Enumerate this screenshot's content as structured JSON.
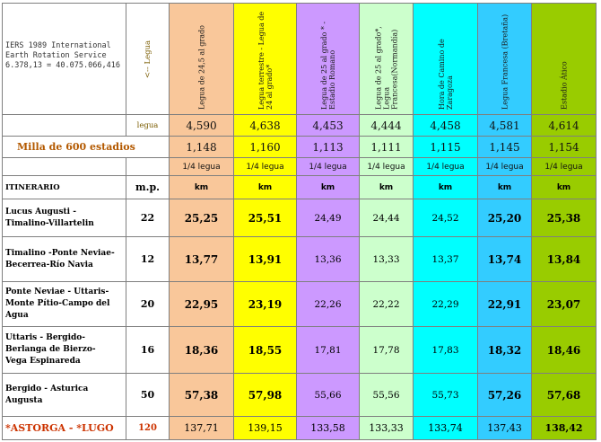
{
  "header": {
    "iers_line1": "IERS 1989 International",
    "iers_line2": "Earth Rotation Service",
    "iers_line3": "6.378,13 = 40.075.066,416",
    "legua_arrow": "<-- Legua",
    "columns": [
      "Legua de 24,5 al grado",
      "Legua terrestre - Legua de 24 al grado*",
      "Legua de 25 al grado * - Estadio Romano",
      "Legua de 25 al grado*, Legua Francesa(Normandía)",
      "Hora de Camino de Zaragoza",
      "Legua Francesa (Bretaña)",
      "Estadio Ático"
    ]
  },
  "legua_row": {
    "label": "legua",
    "values": [
      "4,590",
      "4,638",
      "4,453",
      "4,444",
      "4,458",
      "4,581",
      "4,614"
    ]
  },
  "milla_row": {
    "label": "Milla de 600 estadios",
    "values": [
      "1,148",
      "1,160",
      "1,113",
      "1,111",
      "1,115",
      "1,145",
      "1,154"
    ],
    "fraction": "1/4 legua"
  },
  "itinerario_header": {
    "label": "ITINERARIO",
    "mp": "m.p.",
    "unit": "km"
  },
  "routes": [
    {
      "name_l1": "Lucus Augusti -",
      "name_l2": "Timalino-Villartelin",
      "name_l3": "",
      "mp": "22",
      "values": [
        "25,25",
        "25,51",
        "24,49",
        "24,44",
        "24,52",
        "25,20",
        "25,38"
      ]
    },
    {
      "name_l1": "Timalino -Ponte Neviae-",
      "name_l2": "Becerrea-Río Navia",
      "name_l3": "",
      "mp": "12",
      "values": [
        "13,77",
        "13,91",
        "13,36",
        "13,33",
        "13,37",
        "13,74",
        "13,84"
      ]
    },
    {
      "name_l1": "Ponte Neviae - Uttaris-",
      "name_l2": "Monte Pítio-Campo del",
      "name_l3": "Agua",
      "mp": "20",
      "values": [
        "22,95",
        "23,19",
        "22,26",
        "22,22",
        "22,29",
        "22,91",
        "23,07"
      ]
    },
    {
      "name_l1": "Uttaris - Bergido-",
      "name_l2": "Berlanga de Bierzo-",
      "name_l3": "Vega Espinareda",
      "mp": "16",
      "values": [
        "18,36",
        "18,55",
        "17,81",
        "17,78",
        "17,83",
        "18,32",
        "18,46"
      ]
    },
    {
      "name_l1": "Bergido - Asturica",
      "name_l2": "Augusta",
      "name_l3": "",
      "mp": "50",
      "values": [
        "57,38",
        "57,98",
        "55,66",
        "55,56",
        "55,73",
        "57,26",
        "57,68"
      ]
    }
  ],
  "total": {
    "name": "*ASTORGA - *LUGO",
    "mp": "120",
    "values": [
      "137,71",
      "139,15",
      "133,58",
      "133,33",
      "133,74",
      "137,43",
      "138,42"
    ]
  }
}
